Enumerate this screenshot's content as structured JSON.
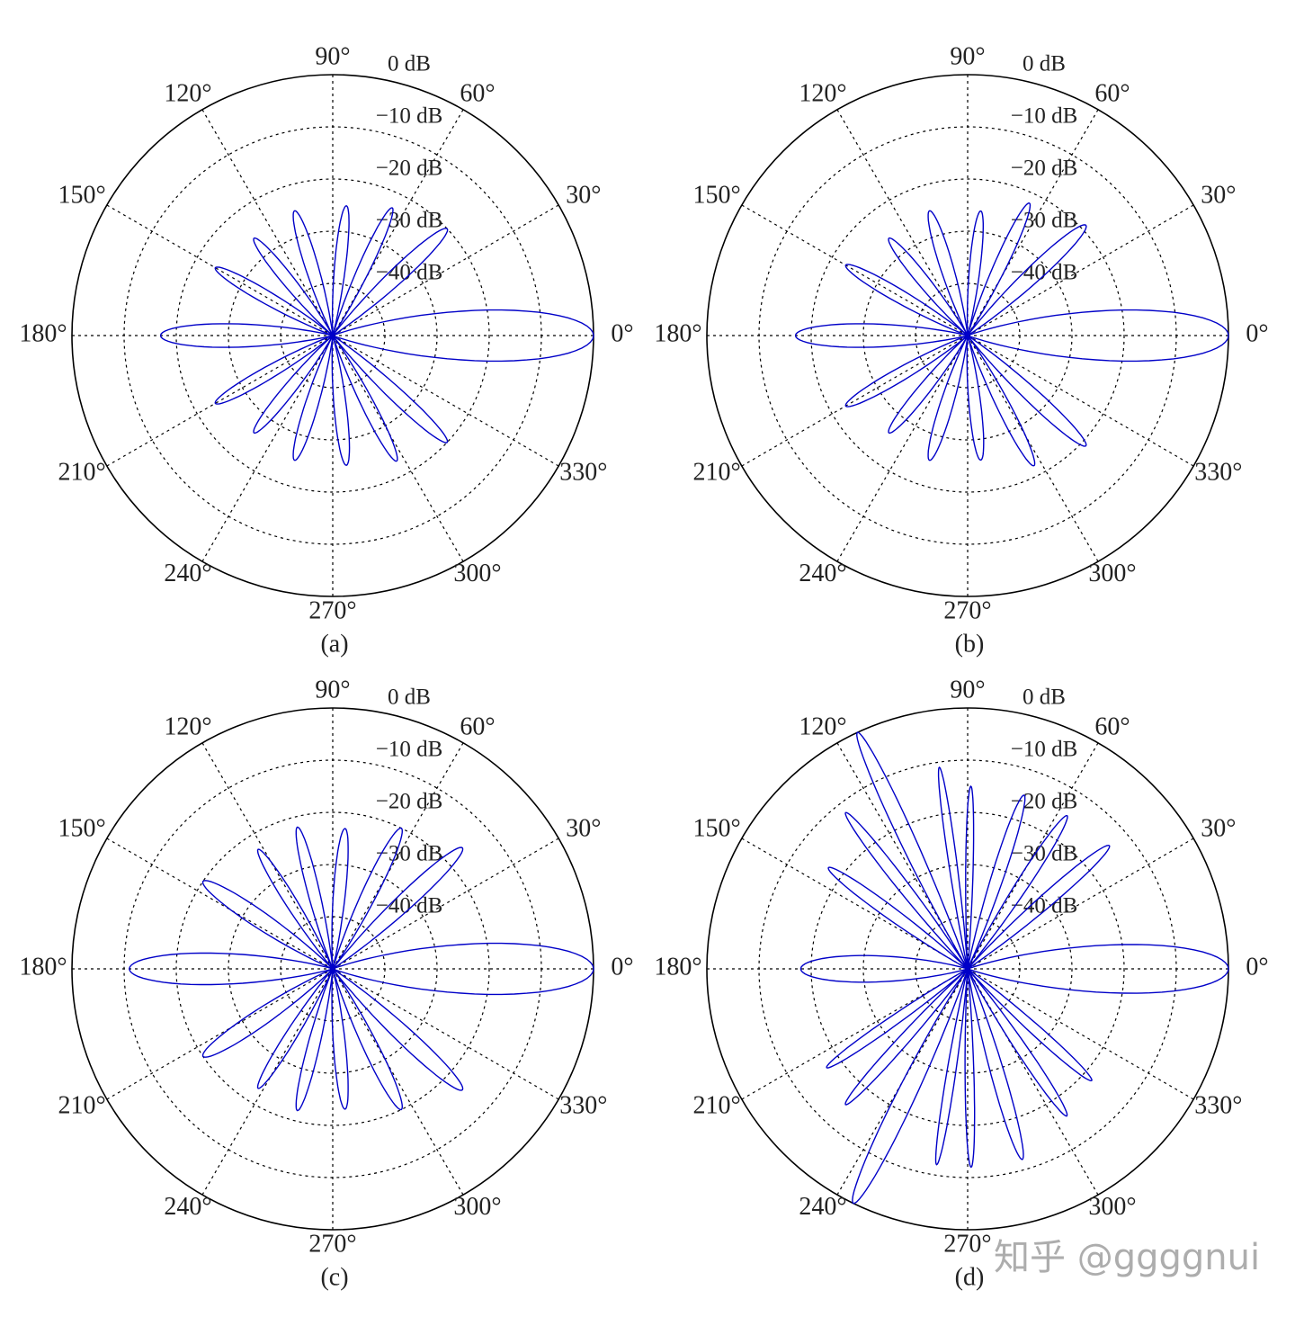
{
  "chart_data": [
    {
      "type": "polar",
      "title": "(a)",
      "color": "#0000c8",
      "grid": true,
      "x": [
        0,
        43,
        65,
        84,
        107,
        129,
        150,
        180,
        210,
        231,
        253,
        276,
        297,
        317
      ],
      "values": [
        0,
        -20,
        -23,
        -25,
        -25,
        -26,
        -24,
        -17,
        -24,
        -26,
        -25,
        -25,
        -23,
        -20
      ],
      "ylim": [
        -50,
        0
      ],
      "yticks": [
        {
          "value": 0,
          "label": "0 dB"
        },
        {
          "value": -10,
          "label": "−10 dB"
        },
        {
          "value": -20,
          "label": "−20 dB"
        },
        {
          "value": -30,
          "label": "−30 dB"
        },
        {
          "value": -40,
          "label": "−40 dB"
        }
      ],
      "xticks": [
        {
          "value": 0,
          "label": "0°"
        },
        {
          "value": 30,
          "label": "30°"
        },
        {
          "value": 60,
          "label": "60°"
        },
        {
          "value": 90,
          "label": "90°"
        },
        {
          "value": 120,
          "label": "120°"
        },
        {
          "value": 150,
          "label": "150°"
        },
        {
          "value": 180,
          "label": "180°"
        },
        {
          "value": 210,
          "label": "210°"
        },
        {
          "value": 240,
          "label": "240°"
        },
        {
          "value": 270,
          "label": "270°"
        },
        {
          "value": 300,
          "label": "300°"
        },
        {
          "value": 330,
          "label": "330°"
        }
      ]
    },
    {
      "type": "polar",
      "title": "(b)",
      "color": "#0000c8",
      "grid": true,
      "x": [
        0,
        43,
        65,
        84,
        107,
        129,
        150,
        180,
        210,
        231,
        253,
        276,
        297,
        317
      ],
      "values": [
        0,
        -19,
        -22,
        -26,
        -25,
        -26,
        -23,
        -17,
        -23,
        -26,
        -25,
        -26,
        -22,
        -19
      ],
      "ylim": [
        -50,
        0
      ],
      "yticks": [
        {
          "value": 0,
          "label": "0 dB"
        },
        {
          "value": -10,
          "label": "−10 dB"
        },
        {
          "value": -20,
          "label": "−20 dB"
        },
        {
          "value": -30,
          "label": "−30 dB"
        },
        {
          "value": -40,
          "label": "−40 dB"
        }
      ],
      "xticks": [
        {
          "value": 0,
          "label": "0°"
        },
        {
          "value": 30,
          "label": "30°"
        },
        {
          "value": 60,
          "label": "60°"
        },
        {
          "value": 90,
          "label": "90°"
        },
        {
          "value": 120,
          "label": "120°"
        },
        {
          "value": 150,
          "label": "150°"
        },
        {
          "value": 180,
          "label": "180°"
        },
        {
          "value": 210,
          "label": "210°"
        },
        {
          "value": 240,
          "label": "240°"
        },
        {
          "value": 270,
          "label": "270°"
        },
        {
          "value": 300,
          "label": "300°"
        },
        {
          "value": 330,
          "label": "330°"
        }
      ]
    },
    {
      "type": "polar",
      "title": "(c)",
      "color": "#0000c8",
      "grid": true,
      "x": [
        0,
        43,
        64,
        85,
        104,
        122,
        146,
        180,
        214,
        238,
        256,
        275,
        296,
        317
      ],
      "values": [
        0,
        -16,
        -20,
        -23,
        -22,
        -23,
        -20,
        -11,
        -20,
        -23,
        -22,
        -23,
        -20,
        -16
      ],
      "ylim": [
        -50,
        0
      ],
      "yticks": [
        {
          "value": 0,
          "label": "0 dB"
        },
        {
          "value": -10,
          "label": "−10 dB"
        },
        {
          "value": -20,
          "label": "−20 dB"
        },
        {
          "value": -30,
          "label": "−30 dB"
        },
        {
          "value": -40,
          "label": "−40 dB"
        }
      ],
      "xticks": [
        {
          "value": 0,
          "label": "0°"
        },
        {
          "value": 30,
          "label": "30°"
        },
        {
          "value": 60,
          "label": "60°"
        },
        {
          "value": 90,
          "label": "90°"
        },
        {
          "value": 120,
          "label": "120°"
        },
        {
          "value": 150,
          "label": "150°"
        },
        {
          "value": 180,
          "label": "180°"
        },
        {
          "value": 210,
          "label": "210°"
        },
        {
          "value": 240,
          "label": "240°"
        },
        {
          "value": 270,
          "label": "270°"
        },
        {
          "value": 300,
          "label": "300°"
        },
        {
          "value": 330,
          "label": "330°"
        }
      ]
    },
    {
      "type": "polar",
      "title": "(d)",
      "color": "#0000c8",
      "grid": true,
      "x": [
        0,
        41,
        57,
        72,
        89,
        98,
        115,
        128,
        144,
        180,
        215,
        228,
        244,
        261,
        271,
        286,
        304,
        318
      ],
      "values": [
        0,
        -14,
        -15,
        -15,
        -15,
        -11,
        0,
        -12,
        -17,
        -18,
        -17,
        -15,
        0,
        -12,
        -12,
        -12,
        -16,
        -18
      ],
      "ylim": [
        -50,
        0
      ],
      "yticks": [
        {
          "value": 0,
          "label": "0 dB"
        },
        {
          "value": -10,
          "label": "−10 dB"
        },
        {
          "value": -20,
          "label": "−20 dB"
        },
        {
          "value": -30,
          "label": "−30 dB"
        },
        {
          "value": -40,
          "label": "−40 dB"
        }
      ],
      "xticks": [
        {
          "value": 0,
          "label": "0°"
        },
        {
          "value": 30,
          "label": "30°"
        },
        {
          "value": 60,
          "label": "60°"
        },
        {
          "value": 90,
          "label": "90°"
        },
        {
          "value": 120,
          "label": "120°"
        },
        {
          "value": 150,
          "label": "150°"
        },
        {
          "value": 180,
          "label": "180°"
        },
        {
          "value": 210,
          "label": "210°"
        },
        {
          "value": 240,
          "label": "240°"
        },
        {
          "value": 270,
          "label": "270°"
        },
        {
          "value": 300,
          "label": "300°"
        },
        {
          "value": 330,
          "label": "330°"
        }
      ]
    }
  ],
  "watermark": "知乎 @ggggnui"
}
